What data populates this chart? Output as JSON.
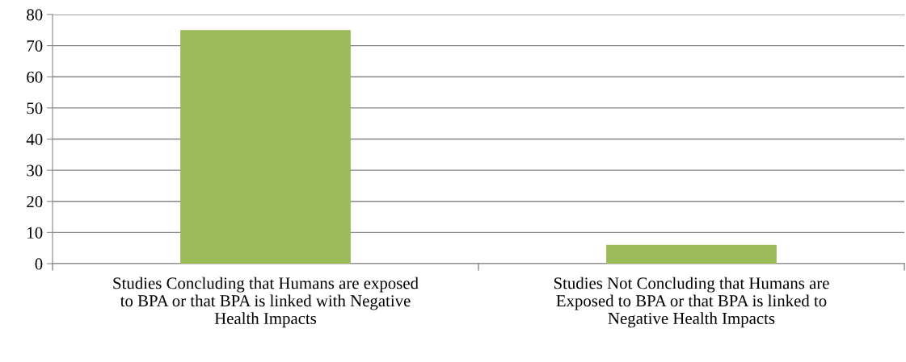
{
  "chart_data": {
    "type": "bar",
    "categories": [
      "Studies Concluding that Humans are exposed\nto BPA or that BPA is linked with Negative\nHealth Impacts",
      "Studies Not Concluding that Humans are\nExposed to BPA or that BPA is linked to\nNegative Health Impacts"
    ],
    "values": [
      75,
      6
    ],
    "color": "#9bbb59",
    "ylim": [
      0,
      80
    ],
    "yticks": [
      0,
      10,
      20,
      30,
      40,
      50,
      60,
      70,
      80
    ],
    "grid": "y",
    "legend": false
  }
}
